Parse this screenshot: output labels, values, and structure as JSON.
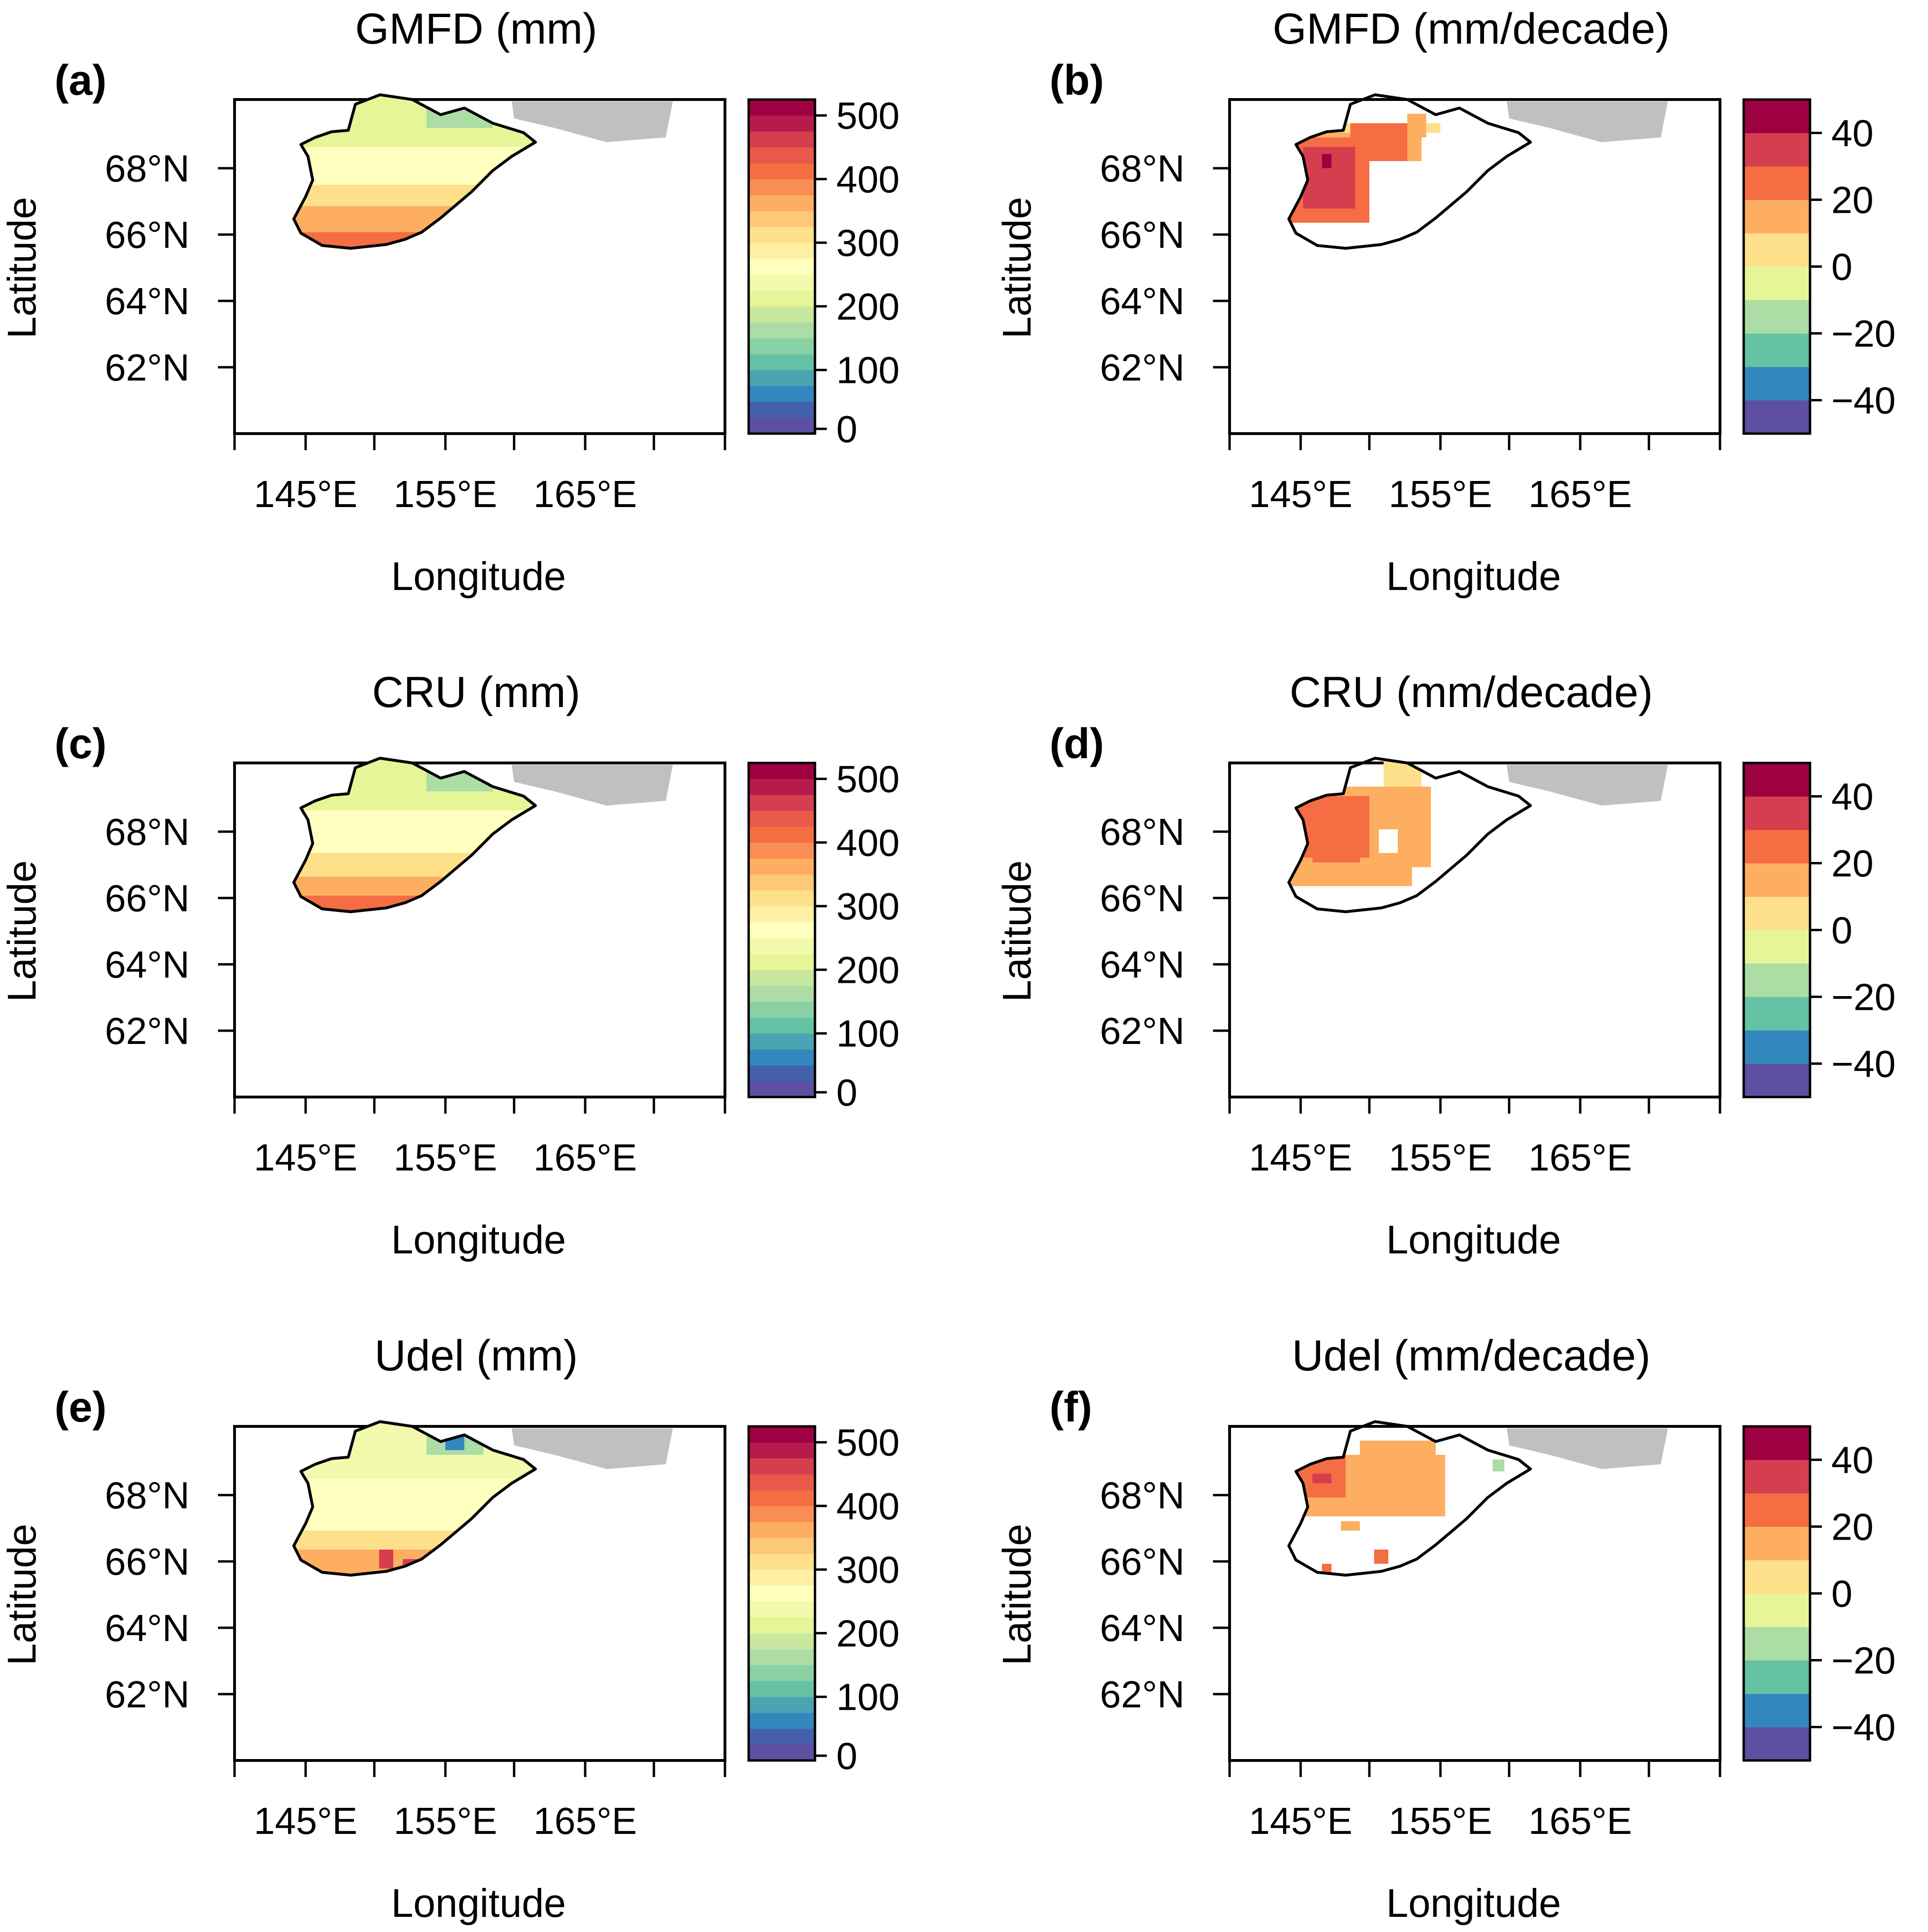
{
  "figure": {
    "panels": [
      {
        "id": "a",
        "label": "(a)",
        "title": "GMFD (mm)",
        "kind": "climatology"
      },
      {
        "id": "b",
        "label": "(b)",
        "title": "GMFD (mm/decade)",
        "kind": "trend"
      },
      {
        "id": "c",
        "label": "(c)",
        "title": "CRU (mm)",
        "kind": "climatology"
      },
      {
        "id": "d",
        "label": "(d)",
        "title": "CRU (mm/decade)",
        "kind": "trend"
      },
      {
        "id": "e",
        "label": "(e)",
        "title": "Udel (mm)",
        "kind": "climatology"
      },
      {
        "id": "f",
        "label": "(f)",
        "title": "Udel (mm/decade)",
        "kind": "trend"
      }
    ],
    "axes": {
      "xlabel": "Longitude",
      "ylabel": "Latitude",
      "xticks": [
        "145°E",
        "155°E",
        "165°E"
      ],
      "yticks": [
        "68°N",
        "66°N",
        "64°N",
        "62°N"
      ]
    },
    "legends": {
      "climatology": {
        "ticks": [
          "500",
          "400",
          "300",
          "200",
          "100",
          "0"
        ],
        "colors": [
          "#5e4fa2",
          "#4560ab",
          "#3288bd",
          "#4ba4b1",
          "#66c2a5",
          "#89d0a4",
          "#abdda4",
          "#c7e89e",
          "#e6f598",
          "#f2faad",
          "#ffffbf",
          "#fff0a6",
          "#fee08b",
          "#fdc877",
          "#fdae61",
          "#f88e53",
          "#f46d43",
          "#e75948",
          "#d53e4f",
          "#b81b4b",
          "#9e0142"
        ]
      },
      "trend": {
        "ticks": [
          "40",
          "20",
          "0",
          "−20",
          "−40"
        ],
        "colors": [
          "#5e4fa2",
          "#3288bd",
          "#66c2a5",
          "#abdda4",
          "#e6f598",
          "#fee08b",
          "#fdae61",
          "#f46d43",
          "#d53e4f",
          "#9e0142"
        ]
      }
    },
    "map_colors": {
      "land_outside": "#c0c0c0",
      "clim_north": "#e6f598",
      "clim_mid": "#ffffbf",
      "clim_south": "#fdae61",
      "clim_far_south": "#f46d43",
      "clim_low": "#abdda4",
      "trend_strong": "#d53e4f",
      "trend_mid": "#f46d43",
      "trend_weak": "#fdae61",
      "trend_slight": "#fee08b",
      "trend_negative": "#abdda4"
    }
  }
}
